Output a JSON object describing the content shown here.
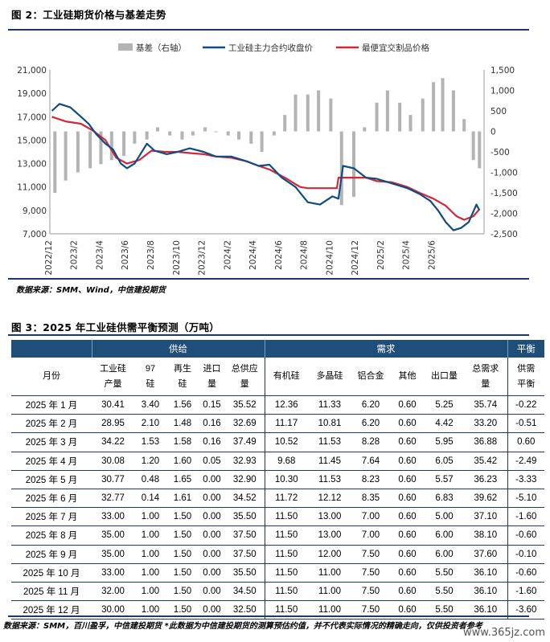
{
  "figure2": {
    "title": "图 2：工业硅期货价格与基差走势",
    "source": "数据来源：SMM、Wind，中信建投期货"
  },
  "figure3": {
    "title": "图 3：2025 年工业硅供需平衡预测（万吨）",
    "source": "数据来源：SMM，百川盈孚，中信建投期货 *此数据为中信建投期货的测算预估约值，并不代表实际情况的精确走向，仅供投资者参考"
  },
  "watermark": "www.365jz.com",
  "colors": {
    "navy": "#1f3864",
    "header_fill": "#1f4e79",
    "futures_line": "#0f4c81",
    "spot_line": "#d0283a",
    "basis_bar": "#b3b3b3"
  },
  "chart_data": {
    "type": "line",
    "legend": {
      "placement": "top",
      "entries": [
        "基差（右轴）",
        "工业硅主力合约收盘价",
        "最便宜交割品价格"
      ]
    },
    "left_axis": {
      "ylim": [
        7000,
        21000
      ],
      "ticks": [
        "21,000",
        "19,000",
        "17,000",
        "15,000",
        "13,000",
        "11,000",
        "9,000",
        "7,000"
      ]
    },
    "right_axis": {
      "ylim": [
        -2500,
        1500
      ],
      "ticks": [
        "1,500",
        "1,000",
        "500",
        "0",
        "-500",
        "-1,000",
        "-1,500",
        "-2,000",
        "-2,500"
      ]
    },
    "x_ticks": [
      "2022/12",
      "2023/2",
      "2023/4",
      "2023/6",
      "2023/8",
      "2023/10",
      "2023/12",
      "2024/2",
      "2024/4",
      "2024/6",
      "2024/8",
      "2024/10",
      "2024/12",
      "2025/2",
      "2025/4",
      "2025/6"
    ],
    "x_range": [
      2022.917,
      2025.75
    ],
    "series": [
      {
        "name": "工业硅主力合约收盘价",
        "x": [
          2022.93,
          2022.98,
          2023.05,
          2023.12,
          2023.17,
          2023.22,
          2023.28,
          2023.33,
          2023.38,
          2023.42,
          2023.47,
          2023.55,
          2023.6,
          2023.68,
          2023.75,
          2023.83,
          2023.92,
          2024.0,
          2024.1,
          2024.2,
          2024.28,
          2024.35,
          2024.43,
          2024.52,
          2024.6,
          2024.68,
          2024.76,
          2024.8,
          2024.83,
          2024.9,
          2024.98,
          2025.05,
          2025.15,
          2025.25,
          2025.33,
          2025.4,
          2025.45,
          2025.5,
          2025.55,
          2025.6,
          2025.65,
          2025.7,
          2025.72
        ],
        "values": [
          17500,
          18100,
          17800,
          17000,
          16400,
          15500,
          14700,
          14200,
          13000,
          12600,
          13000,
          14700,
          14100,
          13800,
          14000,
          14300,
          14000,
          13600,
          13600,
          13200,
          12800,
          12900,
          11800,
          11000,
          9700,
          9500,
          10200,
          10000,
          12800,
          12600,
          11800,
          11700,
          11300,
          10900,
          10400,
          9800,
          9000,
          8000,
          7300,
          7500,
          8000,
          9500,
          9000
        ]
      },
      {
        "name": "最便宜交割品价格",
        "x": [
          2022.93,
          2023.02,
          2023.12,
          2023.2,
          2023.28,
          2023.35,
          2023.42,
          2023.5,
          2023.58,
          2023.67,
          2023.75,
          2023.83,
          2023.92,
          2024.0,
          2024.1,
          2024.2,
          2024.28,
          2024.35,
          2024.45,
          2024.55,
          2024.6,
          2024.68,
          2024.79,
          2024.8,
          2024.9,
          2024.98,
          2025.05,
          2025.15,
          2025.25,
          2025.33,
          2025.42,
          2025.5,
          2025.57,
          2025.62,
          2025.68,
          2025.72
        ],
        "values": [
          17000,
          16600,
          16400,
          15800,
          15000,
          13500,
          13000,
          13300,
          14100,
          14000,
          14000,
          13900,
          13800,
          13600,
          13500,
          13200,
          12800,
          12500,
          11800,
          11000,
          10900,
          10900,
          10900,
          11800,
          11800,
          11800,
          11500,
          11400,
          11000,
          10500,
          10000,
          9400,
          8500,
          8200,
          8500,
          9100
        ]
      },
      {
        "name": "基差（右轴）",
        "type": "bar",
        "x": [
          2022.95,
          2023.02,
          2023.1,
          2023.18,
          2023.25,
          2023.32,
          2023.4,
          2023.47,
          2023.55,
          2023.62,
          2023.7,
          2023.78,
          2023.85,
          2023.93,
          2024.0,
          2024.08,
          2024.15,
          2024.23,
          2024.3,
          2024.38,
          2024.45,
          2024.52,
          2024.6,
          2024.67,
          2024.75,
          2024.82,
          2024.9,
          2024.97,
          2025.05,
          2025.12,
          2025.2,
          2025.27,
          2025.35,
          2025.42,
          2025.48,
          2025.55,
          2025.62,
          2025.68,
          2025.72
        ],
        "values": [
          -1500,
          -1200,
          -1000,
          -900,
          -800,
          -700,
          -600,
          -300,
          -200,
          100,
          -100,
          -200,
          -100,
          100,
          0,
          -100,
          -200,
          -300,
          -500,
          -100,
          400,
          900,
          900,
          1000,
          800,
          -1800,
          -1600,
          100,
          700,
          1000,
          700,
          400,
          800,
          1200,
          1300,
          1000,
          300,
          -700,
          -900
        ]
      }
    ]
  },
  "table": {
    "group_headers": {
      "supply": "供给",
      "demand": "需求",
      "balance": "平衡"
    },
    "col_month": "月份",
    "columns": [
      [
        "工业硅",
        "产量"
      ],
      [
        "97",
        "硅"
      ],
      [
        "再生",
        "硅"
      ],
      [
        "进口",
        "量"
      ],
      [
        "总供应",
        "量"
      ],
      [
        "有机硅"
      ],
      [
        "多晶硅"
      ],
      [
        "铝合金"
      ],
      [
        "其他"
      ],
      [
        "出口量"
      ],
      [
        "总需求",
        "量"
      ],
      [
        "供需",
        "平衡"
      ]
    ],
    "rows": [
      [
        "2025 年 1 月",
        "30.41",
        "3.40",
        "1.56",
        "0.15",
        "35.52",
        "12.36",
        "11.33",
        "6.20",
        "0.60",
        "5.25",
        "35.74",
        "-0.22"
      ],
      [
        "2025 年 2 月",
        "28.95",
        "2.10",
        "1.48",
        "0.16",
        "32.69",
        "11.17",
        "10.81",
        "6.20",
        "0.60",
        "4.42",
        "33.20",
        "-0.51"
      ],
      [
        "2025 年 3 月",
        "34.22",
        "1.53",
        "1.58",
        "0.16",
        "37.49",
        "10.52",
        "11.53",
        "8.28",
        "0.60",
        "5.95",
        "36.88",
        "0.60"
      ],
      [
        "2025 年 4 月",
        "30.08",
        "1.20",
        "1.60",
        "0.05",
        "32.93",
        "9.68",
        "11.45",
        "7.64",
        "0.60",
        "6.05",
        "35.42",
        "-2.49"
      ],
      [
        "2025 年 5 月",
        "30.77",
        "0.48",
        "1.65",
        "0.00",
        "32.90",
        "10.30",
        "11.53",
        "8.23",
        "0.60",
        "5.57",
        "36.23",
        "-3.33"
      ],
      [
        "2025 年 6 月",
        "32.77",
        "0.14",
        "1.61",
        "0.00",
        "34.52",
        "11.72",
        "12.12",
        "8.35",
        "0.60",
        "6.83",
        "39.62",
        "-5.10"
      ],
      [
        "2025 年 7 月",
        "33.00",
        "1.00",
        "1.50",
        "0.00",
        "35.50",
        "11.50",
        "13.00",
        "7.00",
        "0.60",
        "5.00",
        "37.10",
        "-1.60"
      ],
      [
        "2025 年 8 月",
        "35.00",
        "1.00",
        "1.50",
        "0.00",
        "37.50",
        "11.50",
        "13.00",
        "7.00",
        "0.60",
        "6.00",
        "38.10",
        "-0.60"
      ],
      [
        "2025 年 9 月",
        "35.00",
        "1.00",
        "1.50",
        "0.00",
        "37.50",
        "11.50",
        "12.00",
        "7.50",
        "0.60",
        "6.00",
        "37.60",
        "-0.10"
      ],
      [
        "2025 年 10 月",
        "33.00",
        "1.00",
        "1.50",
        "0.00",
        "35.50",
        "11.50",
        "11.00",
        "7.50",
        "0.60",
        "5.50",
        "36.10",
        "-0.60"
      ],
      [
        "2025 年 11 月",
        "32.00",
        "1.00",
        "1.50",
        "0.00",
        "34.50",
        "11.50",
        "11.00",
        "7.50",
        "0.60",
        "5.50",
        "36.10",
        "-1.60"
      ],
      [
        "2025 年 12 月",
        "30.00",
        "1.00",
        "1.50",
        "0.00",
        "32.50",
        "11.50",
        "11.00",
        "7.50",
        "0.60",
        "5.50",
        "36.10",
        "-3.60"
      ]
    ]
  }
}
